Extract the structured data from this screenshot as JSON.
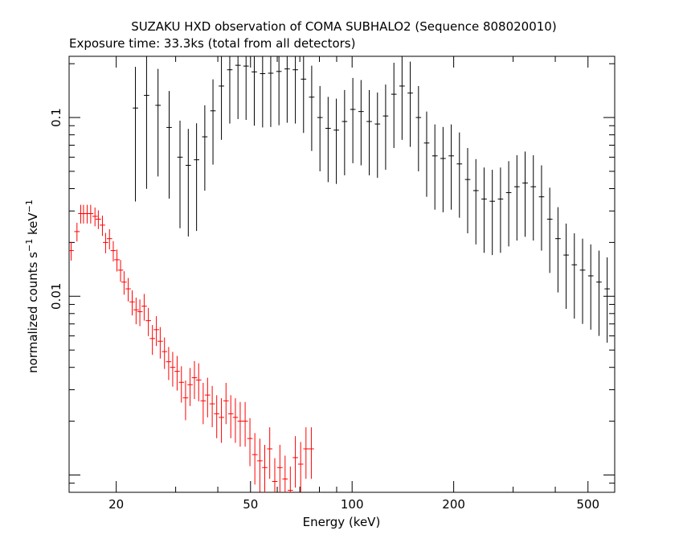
{
  "chart_data": {
    "type": "scatter",
    "title": "SUZAKU HXD observation of COMA SUBHALO2 (Sequence 808020010)",
    "subtitle": "Exposure time: 33.3ks (total from all detectors)",
    "xlabel": "Energy (keV)",
    "ylabel_main": "normalized counts s",
    "ylabel_mid": " keV",
    "ylabel_sup": "−1",
    "xscale": "log",
    "yscale": "log",
    "xlim": [
      14.5,
      600
    ],
    "ylim": [
      0.0008,
      0.22
    ],
    "xticks": [
      20,
      50,
      100,
      200,
      500
    ],
    "xtick_labels": [
      "20",
      "50",
      "100",
      "200",
      "500"
    ],
    "yticks_labeled": [
      0.1,
      0.01
    ],
    "ytick_labels": [
      "0.1",
      "0.01"
    ],
    "colors": {
      "gso": "#000000",
      "pin": "#ff0000",
      "frame": "#000000"
    },
    "series": [
      {
        "points": [
          [
            22.8,
            0.113,
            0.7
          ],
          [
            24.6,
            0.133,
            0.7
          ],
          [
            26.6,
            0.117,
            0.6
          ],
          [
            28.7,
            0.088,
            0.6
          ],
          [
            30.9,
            0.06,
            0.6
          ],
          [
            32.7,
            0.054,
            0.6
          ],
          [
            34.6,
            0.058,
            0.6
          ],
          [
            36.6,
            0.078,
            0.5
          ],
          [
            38.7,
            0.109,
            0.5
          ],
          [
            41.0,
            0.15,
            0.5
          ],
          [
            43.4,
            0.185,
            0.5
          ],
          [
            45.9,
            0.196,
            0.5
          ],
          [
            48.5,
            0.194,
            0.5
          ],
          [
            51.3,
            0.18,
            0.5
          ],
          [
            54.3,
            0.176,
            0.5
          ],
          [
            57.4,
            0.177,
            0.5
          ],
          [
            60.7,
            0.181,
            0.5
          ],
          [
            64.2,
            0.187,
            0.5
          ],
          [
            67.9,
            0.185,
            0.5
          ],
          [
            71.8,
            0.164,
            0.5
          ],
          [
            75.9,
            0.13,
            0.5
          ],
          [
            80.3,
            0.1,
            0.5
          ],
          [
            84.9,
            0.087,
            0.5
          ],
          [
            89.8,
            0.085,
            0.5
          ],
          [
            95.0,
            0.095,
            0.5
          ],
          [
            100.5,
            0.111,
            0.5
          ],
          [
            106.3,
            0.108,
            0.5
          ],
          [
            112.4,
            0.095,
            0.5
          ],
          [
            118.9,
            0.092,
            0.5
          ],
          [
            125.7,
            0.102,
            0.5
          ],
          [
            133.0,
            0.135,
            0.5
          ],
          [
            140.6,
            0.15,
            0.5
          ],
          [
            148.7,
            0.137,
            0.5
          ],
          [
            157.3,
            0.1,
            0.5
          ],
          [
            166.3,
            0.072,
            0.5
          ],
          [
            175.9,
            0.061,
            0.5
          ],
          [
            186.0,
            0.059,
            0.5
          ],
          [
            196.7,
            0.061,
            0.5
          ],
          [
            208.0,
            0.055,
            0.5
          ],
          [
            220.0,
            0.045,
            0.5
          ],
          [
            232.7,
            0.039,
            0.5
          ],
          [
            246.1,
            0.035,
            0.5
          ],
          [
            260.3,
            0.034,
            0.5
          ],
          [
            275.3,
            0.035,
            0.5
          ],
          [
            291.1,
            0.038,
            0.5
          ],
          [
            307.9,
            0.041,
            0.5
          ],
          [
            325.6,
            0.043,
            0.5
          ],
          [
            344.4,
            0.041,
            0.5
          ],
          [
            364.2,
            0.036,
            0.5
          ],
          [
            385.2,
            0.027,
            0.5
          ],
          [
            407.4,
            0.021,
            0.5
          ],
          [
            430.8,
            0.017,
            0.5
          ],
          [
            455.6,
            0.015,
            0.5
          ],
          [
            481.9,
            0.014,
            0.5
          ],
          [
            509.6,
            0.013,
            0.5
          ],
          [
            539.0,
            0.012,
            0.5
          ],
          [
            570.0,
            0.011,
            0.5
          ]
        ]
      },
      {
        "points": [
          [
            14.7,
            0.018,
            0.12
          ],
          [
            15.3,
            0.023,
            0.12
          ],
          [
            15.7,
            0.029,
            0.12
          ],
          [
            16.0,
            0.029,
            0.12
          ],
          [
            16.4,
            0.029,
            0.12
          ],
          [
            16.8,
            0.029,
            0.12
          ],
          [
            17.3,
            0.028,
            0.12
          ],
          [
            17.7,
            0.027,
            0.12
          ],
          [
            18.2,
            0.025,
            0.13
          ],
          [
            18.6,
            0.02,
            0.13
          ],
          [
            19.1,
            0.021,
            0.13
          ],
          [
            19.6,
            0.018,
            0.13
          ],
          [
            20.1,
            0.016,
            0.14
          ],
          [
            20.6,
            0.014,
            0.14
          ],
          [
            21.1,
            0.012,
            0.15
          ],
          [
            21.7,
            0.011,
            0.15
          ],
          [
            22.3,
            0.0093,
            0.16
          ],
          [
            22.9,
            0.0084,
            0.17
          ],
          [
            23.5,
            0.0082,
            0.17
          ],
          [
            24.2,
            0.0088,
            0.17
          ],
          [
            24.9,
            0.0073,
            0.18
          ],
          [
            25.6,
            0.0058,
            0.19
          ],
          [
            26.3,
            0.0065,
            0.19
          ],
          [
            27.0,
            0.0056,
            0.2
          ],
          [
            27.8,
            0.0049,
            0.2
          ],
          [
            28.6,
            0.0043,
            0.21
          ],
          [
            29.4,
            0.004,
            0.22
          ],
          [
            30.3,
            0.0038,
            0.22
          ],
          [
            31.2,
            0.0033,
            0.23
          ],
          [
            32.1,
            0.0027,
            0.25
          ],
          [
            33.1,
            0.0032,
            0.24
          ],
          [
            34.1,
            0.0035,
            0.24
          ],
          [
            35.1,
            0.0034,
            0.24
          ],
          [
            36.2,
            0.0026,
            0.26
          ],
          [
            37.3,
            0.0028,
            0.25
          ],
          [
            38.5,
            0.0025,
            0.26
          ],
          [
            39.7,
            0.0022,
            0.27
          ],
          [
            41.0,
            0.0021,
            0.28
          ],
          [
            42.3,
            0.0026,
            0.26
          ],
          [
            43.7,
            0.0022,
            0.27
          ],
          [
            45.1,
            0.0021,
            0.28
          ],
          [
            46.6,
            0.002,
            0.28
          ],
          [
            48.2,
            0.002,
            0.28
          ],
          [
            49.8,
            0.0016,
            0.3
          ],
          [
            51.5,
            0.0013,
            0.32
          ],
          [
            53.3,
            0.0012,
            0.33
          ],
          [
            55.1,
            0.0011,
            0.34
          ],
          [
            57.0,
            0.0014,
            0.32
          ],
          [
            59.0,
            0.00092,
            0.35
          ],
          [
            61.1,
            0.0011,
            0.34
          ],
          [
            63.3,
            0.00095,
            0.35
          ],
          [
            65.6,
            0.00082,
            0.36
          ],
          [
            67.9,
            0.00125,
            0.32
          ],
          [
            70.4,
            0.00115,
            0.33
          ],
          [
            73.0,
            0.0014,
            0.32
          ],
          [
            75.7,
            0.0014,
            0.32
          ]
        ]
      }
    ]
  }
}
